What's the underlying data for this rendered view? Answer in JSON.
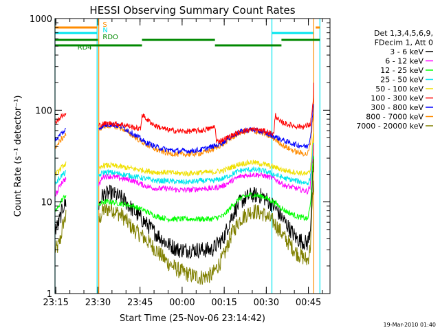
{
  "chart_data": {
    "type": "line",
    "title": "HESSI Observing Summary Count Rates",
    "xlabel": "Start Time (25-Nov-06 23:14:42)",
    "ylabel": "Count Rate (s⁻¹ detector⁻¹)",
    "y_scale": "log",
    "ylim": [
      1,
      1000
    ],
    "xlim_minutes": [
      0,
      98
    ],
    "x_tick_labels": [
      "23:15",
      "23:30",
      "23:45",
      "00:00",
      "00:15",
      "00:30",
      "00:45"
    ],
    "x_tick_minutes": [
      0.3,
      15.3,
      30.3,
      45.3,
      60.3,
      75.3,
      90.3
    ],
    "y_tick_labels": [
      "1",
      "10",
      "100",
      "1000"
    ],
    "y_tick_values": [
      1,
      10,
      100,
      1000
    ],
    "legend_header": [
      "Det 1,3,4,5,6,9,",
      "FDecim 1, Att 0"
    ],
    "legend_position": "right",
    "timestamp": "19-Mar-2010 01:40",
    "gaps_minutes": [
      [
        4.0,
        15.6
      ],
      [
        92.6,
        94.2
      ]
    ],
    "vertical_markers": [
      {
        "x": 0.0,
        "color": "#00e5ee"
      },
      {
        "x": 15.0,
        "color": "#00e5ee"
      },
      {
        "x": 15.6,
        "color": "#ff8c00"
      },
      {
        "x": 77.3,
        "color": "#00e5ee"
      },
      {
        "x": 92.2,
        "color": "#ff8c00"
      },
      {
        "x": 94.4,
        "color": "#00e5ee"
      }
    ],
    "flag_bars": [
      {
        "label": "S",
        "color": "#ff8c00",
        "label_x": 17.0,
        "segments": [
          [
            0,
            15.0
          ],
          [
            92.9,
            94.4
          ]
        ]
      },
      {
        "label": "N",
        "color": "#00e5ee",
        "label_x": 17.0,
        "segments": [
          [
            0,
            15.0
          ],
          [
            77.3,
            92.0
          ]
        ]
      },
      {
        "label": "RDO",
        "color": "#008800",
        "label_x": 17.0,
        "segments": [
          [
            0,
            15.3
          ],
          [
            31.0,
            57.0
          ],
          [
            80.7,
            94.4
          ]
        ]
      },
      {
        "label": "RD4",
        "color": "#008800",
        "label_x": 8.0,
        "segments": [
          [
            0,
            31.0
          ],
          [
            57.0,
            80.7
          ]
        ]
      }
    ],
    "series": [
      {
        "name": "3 - 6 keV",
        "color": "#000000",
        "x": [
          0,
          1,
          2,
          3,
          4,
          15.6,
          17,
          20,
          24,
          28,
          32,
          36,
          40,
          44,
          48,
          52,
          56,
          58,
          60,
          63,
          66,
          70,
          74,
          78,
          82,
          86,
          90,
          91,
          92
        ],
        "y": [
          5,
          5.5,
          7,
          9,
          10,
          9,
          12,
          12.5,
          11,
          8,
          6,
          4.5,
          3.5,
          3,
          3,
          3,
          3,
          3.5,
          4,
          7,
          10,
          12,
          11.5,
          9,
          6,
          4,
          3.5,
          5,
          25
        ]
      },
      {
        "name": "6 - 12 keV",
        "color": "#ff00ff",
        "x": [
          0,
          1,
          2,
          3,
          4,
          15.6,
          17,
          20,
          24,
          28,
          32,
          36,
          40,
          44,
          48,
          52,
          56,
          58,
          60,
          63,
          66,
          70,
          74,
          78,
          82,
          86,
          90,
          91,
          92
        ],
        "y": [
          12,
          13,
          16,
          17,
          18,
          15,
          19,
          19,
          18,
          17,
          15,
          14,
          14,
          13.5,
          13.5,
          14,
          14,
          14.5,
          15,
          17,
          19,
          20,
          19.5,
          18,
          15,
          14,
          13,
          15,
          40
        ]
      },
      {
        "name": "12 - 25 keV",
        "color": "#00ff00",
        "x": [
          0,
          1,
          2,
          3,
          4,
          15.6,
          17,
          20,
          24,
          28,
          32,
          36,
          40,
          44,
          48,
          52,
          56,
          58,
          60,
          63,
          66,
          70,
          74,
          78,
          82,
          86,
          90,
          91,
          92
        ],
        "y": [
          8,
          8.5,
          10,
          11,
          12,
          9,
          10,
          10,
          9.5,
          9,
          8,
          7,
          6.5,
          6.5,
          6.5,
          6.5,
          6.5,
          6.8,
          7,
          9,
          11,
          12,
          11.5,
          10,
          8,
          7,
          6.5,
          9,
          30
        ]
      },
      {
        "name": "25 - 50 keV",
        "color": "#00e5ee",
        "x": [
          0,
          1,
          2,
          3,
          4,
          15.6,
          17,
          20,
          24,
          28,
          32,
          36,
          40,
          44,
          48,
          52,
          56,
          58,
          60,
          63,
          66,
          70,
          74,
          78,
          82,
          86,
          90,
          91,
          92
        ],
        "y": [
          16,
          17,
          19,
          20,
          21,
          19,
          21,
          21,
          20,
          19,
          18,
          17,
          17,
          16.5,
          16.5,
          17,
          17,
          17.5,
          18,
          20,
          22,
          22.5,
          22,
          20,
          18,
          17,
          16,
          18,
          45
        ]
      },
      {
        "name": "50 - 100 keV",
        "color": "#f0e000",
        "x": [
          0,
          1,
          2,
          3,
          4,
          15.6,
          17,
          20,
          24,
          28,
          32,
          36,
          40,
          44,
          48,
          52,
          56,
          58,
          60,
          63,
          66,
          70,
          74,
          78,
          82,
          86,
          90,
          91,
          92
        ],
        "y": [
          20,
          21,
          23,
          25,
          26,
          22,
          25,
          25,
          24,
          23,
          22,
          21,
          21,
          20.5,
          20.5,
          21,
          21,
          21.5,
          22,
          24,
          26,
          27,
          26,
          24,
          22,
          21,
          20,
          22,
          55
        ]
      },
      {
        "name": "100 - 300 keV",
        "color": "#ff0000",
        "x": [
          0,
          1,
          2,
          3,
          4,
          15.6,
          17,
          20,
          24,
          28,
          30.5,
          31,
          33,
          36,
          40,
          44,
          48,
          52,
          56,
          57,
          57.5,
          60,
          63,
          66,
          70,
          74,
          78,
          78.5,
          80,
          83,
          86,
          89,
          91,
          92,
          92.3
        ],
        "y": [
          75,
          78,
          84,
          88,
          90,
          68,
          71,
          72,
          70,
          65,
          62,
          90,
          78,
          67,
          61,
          59,
          59,
          60,
          64,
          68,
          45,
          48,
          53,
          58,
          62,
          60,
          55,
          90,
          75,
          70,
          67,
          66,
          70,
          120,
          220
        ]
      },
      {
        "name": "300 - 800 keV",
        "color": "#0000ff",
        "x": [
          0,
          1,
          2,
          3,
          4,
          15.6,
          17,
          20,
          24,
          28,
          32,
          36,
          40,
          44,
          48,
          52,
          56,
          58,
          60,
          63,
          66,
          70,
          74,
          78,
          82,
          86,
          90,
          91,
          92
        ],
        "y": [
          48,
          50,
          55,
          58,
          62,
          63,
          68,
          70,
          66,
          55,
          45,
          40,
          37,
          36,
          36,
          37,
          40,
          42,
          45,
          52,
          58,
          62,
          58,
          52,
          46,
          42,
          40,
          50,
          110
        ]
      },
      {
        "name": "800 - 7000 keV",
        "color": "#ff8c00",
        "x": [
          0,
          1,
          2,
          3,
          4,
          15.6,
          17,
          20,
          24,
          28,
          32,
          36,
          40,
          44,
          48,
          52,
          56,
          58,
          60,
          63,
          66,
          70,
          74,
          78,
          82,
          86,
          90,
          91,
          92
        ],
        "y": [
          40,
          42,
          47,
          51,
          55,
          62,
          66,
          68,
          63,
          52,
          43,
          37,
          34,
          33,
          33,
          34,
          37,
          40,
          43,
          50,
          57,
          60,
          56,
          49,
          40,
          35,
          33,
          42,
          90
        ]
      },
      {
        "name": "7000 - 20000 keV",
        "color": "#808000",
        "x": [
          0,
          1,
          2,
          3,
          4,
          15.6,
          17,
          20,
          24,
          28,
          32,
          36,
          40,
          44,
          48,
          52,
          56,
          58,
          60,
          63,
          66,
          70,
          74,
          78,
          82,
          86,
          90,
          91,
          92
        ],
        "y": [
          3,
          3.2,
          4,
          6,
          7,
          6,
          8,
          8.5,
          7,
          5,
          4,
          3,
          2.2,
          1.8,
          1.6,
          1.5,
          1.6,
          2,
          2.5,
          4.5,
          6.5,
          8,
          7.5,
          6,
          4,
          2.8,
          2.3,
          3.2,
          15
        ]
      }
    ]
  }
}
